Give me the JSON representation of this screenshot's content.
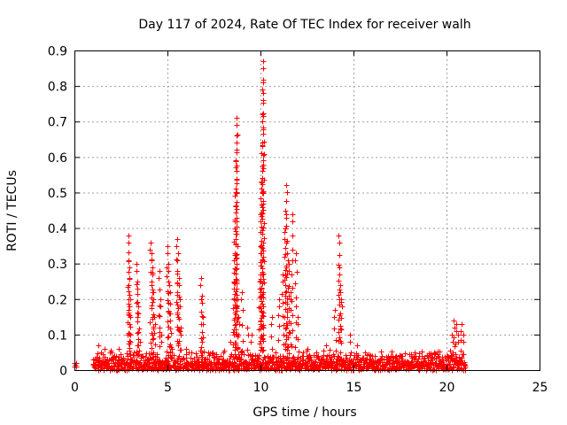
{
  "chart_data": {
    "type": "scatter",
    "title": "Day 117 of 2024, Rate Of TEC Index for receiver walh",
    "xlabel": "GPS time / hours",
    "ylabel": "ROTI / TECUs",
    "xlim": [
      0,
      25
    ],
    "ylim": [
      0,
      0.9
    ],
    "x_ticks": [
      "0",
      "5",
      "10",
      "15",
      "20",
      "25"
    ],
    "y_ticks": [
      "0",
      "0.1",
      "0.2",
      "0.3",
      "0.4",
      "0.5",
      "0.6",
      "0.7",
      "0.8",
      "0.9"
    ],
    "grid": true,
    "marker": "+",
    "colors": {
      "points": "#ff0000",
      "grid": "#a0a0a0",
      "axes": "#000000"
    },
    "series": [
      {
        "x": [
          0.0,
          0.02,
          0.05,
          0.08,
          0.1,
          1.0,
          1.3,
          1.6,
          2.0,
          2.4,
          2.9,
          2.92,
          2.95,
          2.98,
          3.0,
          3.02,
          3.35,
          3.4,
          3.45,
          3.5,
          4.1,
          4.15,
          4.2,
          4.25,
          4.3,
          4.55,
          4.6,
          4.65,
          5.0,
          5.05,
          5.1,
          5.15,
          5.5,
          5.55,
          5.6,
          5.65,
          5.7,
          6.0,
          6.3,
          6.8,
          6.85,
          6.9,
          7.2,
          7.6,
          8.0,
          8.4,
          8.55,
          8.6,
          8.62,
          8.65,
          8.68,
          8.7,
          8.72,
          8.75,
          8.8,
          9.0,
          9.3,
          9.5,
          9.95,
          10.0,
          10.02,
          10.05,
          10.08,
          10.1,
          10.12,
          10.15,
          10.6,
          11.0,
          11.2,
          11.3,
          11.35,
          11.4,
          11.45,
          11.5,
          11.6,
          11.7,
          11.9,
          12.0,
          12.5,
          13.0,
          13.5,
          14.0,
          14.2,
          14.25,
          14.3,
          14.35,
          14.8,
          15.2,
          15.6,
          16.0,
          16.5,
          17.0,
          17.5,
          18.0,
          18.5,
          19.0,
          19.5,
          20.0,
          20.3,
          20.4,
          20.5,
          20.6,
          20.8,
          20.9
        ],
        "y": [
          0.01,
          0.02,
          0.015,
          0.02,
          0.01,
          0.03,
          0.07,
          0.06,
          0.05,
          0.06,
          0.38,
          0.31,
          0.26,
          0.2,
          0.15,
          0.1,
          0.3,
          0.25,
          0.18,
          0.08,
          0.36,
          0.33,
          0.29,
          0.22,
          0.15,
          0.28,
          0.2,
          0.1,
          0.35,
          0.3,
          0.24,
          0.16,
          0.37,
          0.33,
          0.26,
          0.2,
          0.12,
          0.06,
          0.05,
          0.26,
          0.21,
          0.15,
          0.05,
          0.04,
          0.05,
          0.08,
          0.25,
          0.33,
          0.42,
          0.51,
          0.59,
          0.66,
          0.71,
          0.2,
          0.15,
          0.22,
          0.12,
          0.1,
          0.25,
          0.35,
          0.44,
          0.53,
          0.63,
          0.72,
          0.81,
          0.87,
          0.15,
          0.2,
          0.27,
          0.39,
          0.45,
          0.52,
          0.33,
          0.3,
          0.22,
          0.44,
          0.33,
          0.15,
          0.06,
          0.05,
          0.07,
          0.17,
          0.38,
          0.29,
          0.24,
          0.2,
          0.1,
          0.07,
          0.05,
          0.04,
          0.04,
          0.035,
          0.04,
          0.045,
          0.04,
          0.035,
          0.04,
          0.04,
          0.1,
          0.14,
          0.13,
          0.1,
          0.13,
          0.1
        ],
        "baseline_hours": [
          1.0,
          21.0
        ],
        "baseline_max": 0.06
      }
    ]
  }
}
